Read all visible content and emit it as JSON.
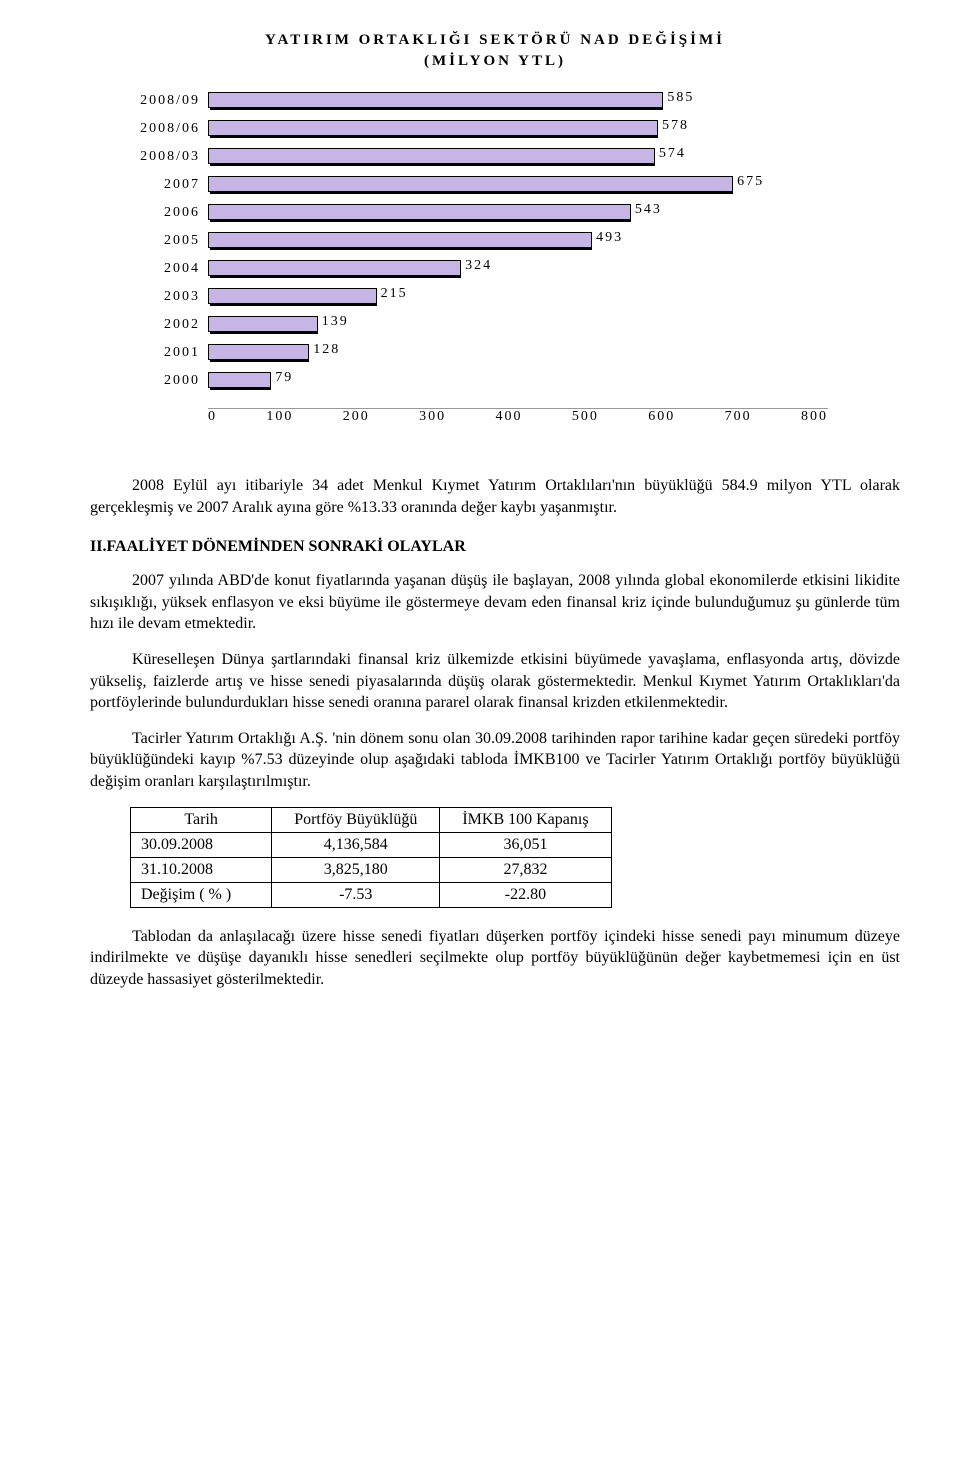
{
  "chart": {
    "title_line1": "YATIRIM ORTAKLIĞI SEKTÖRÜ NAD DEĞİŞİMİ",
    "title_line2": "(MİLYON YTL)",
    "bar_color": "#c7b5e6",
    "xmax": 800,
    "categories": [
      "2008/09",
      "2008/06",
      "2008/03",
      "2007",
      "2006",
      "2005",
      "2004",
      "2003",
      "2002",
      "2001",
      "2000"
    ],
    "values": [
      585,
      578,
      574,
      675,
      543,
      493,
      324,
      215,
      139,
      128,
      79
    ],
    "x_ticks": [
      "0",
      "100",
      "200",
      "300",
      "400",
      "500",
      "600",
      "700",
      "800"
    ]
  },
  "para1": "2008 Eylül ayı itibariyle 34 adet Menkul Kıymet Yatırım Ortaklıları'nın büyüklüğü 584.9 milyon YTL olarak gerçekleşmiş ve 2007 Aralık ayına göre %13.33 oranında değer kaybı yaşanmıştır.",
  "section2_title": "II.FAALİYET DÖNEMİNDEN SONRAKİ OLAYLAR",
  "para2": "2007 yılında ABD'de konut fiyatlarında yaşanan düşüş ile başlayan, 2008 yılında global ekonomilerde etkisini likidite sıkışıklığı, yüksek enflasyon ve eksi büyüme ile göstermeye devam eden finansal kriz içinde bulunduğumuz şu günlerde tüm hızı ile devam etmektedir.",
  "para3": "Küreselleşen Dünya şartlarındaki finansal kriz ülkemizde etkisini büyümede yavaşlama, enflasyonda artış, dövizde yükseliş, faizlerde artış ve hisse senedi piyasalarında düşüş olarak göstermektedir. Menkul Kıymet Yatırım Ortaklıkları'da portföylerinde bulundurdukları hisse senedi oranına pararel olarak finansal krizden etkilenmektedir.",
  "para4": "Tacirler Yatırım Ortaklığı A.Ş. 'nin dönem sonu olan 30.09.2008 tarihinden rapor tarihine kadar geçen süredeki portföy büyüklüğündeki kayıp %7.53 düzeyinde olup aşağıdaki tabloda İMKB100 ve Tacirler Yatırım Ortaklığı portföy büyüklüğü değişim oranları karşılaştırılmıştır.",
  "table": {
    "headers": [
      "Tarih",
      "Portföy Büyüklüğü",
      "İMKB 100 Kapanış"
    ],
    "rows": [
      [
        "30.09.2008",
        "4,136,584",
        "36,051"
      ],
      [
        "31.10.2008",
        "3,825,180",
        "27,832"
      ],
      [
        "Değişim ( % )",
        "-7.53",
        "-22.80"
      ]
    ]
  },
  "para5": "Tablodan da anlaşılacağı üzere hisse senedi fiyatları düşerken portföy içindeki hisse senedi payı minumum düzeye indirilmekte ve düşüşe dayanıklı hisse senedleri seçilmekte olup portföy büyüklüğünün değer kaybetmemesi için en üst düzeyde hassasiyet gösterilmektedir."
}
